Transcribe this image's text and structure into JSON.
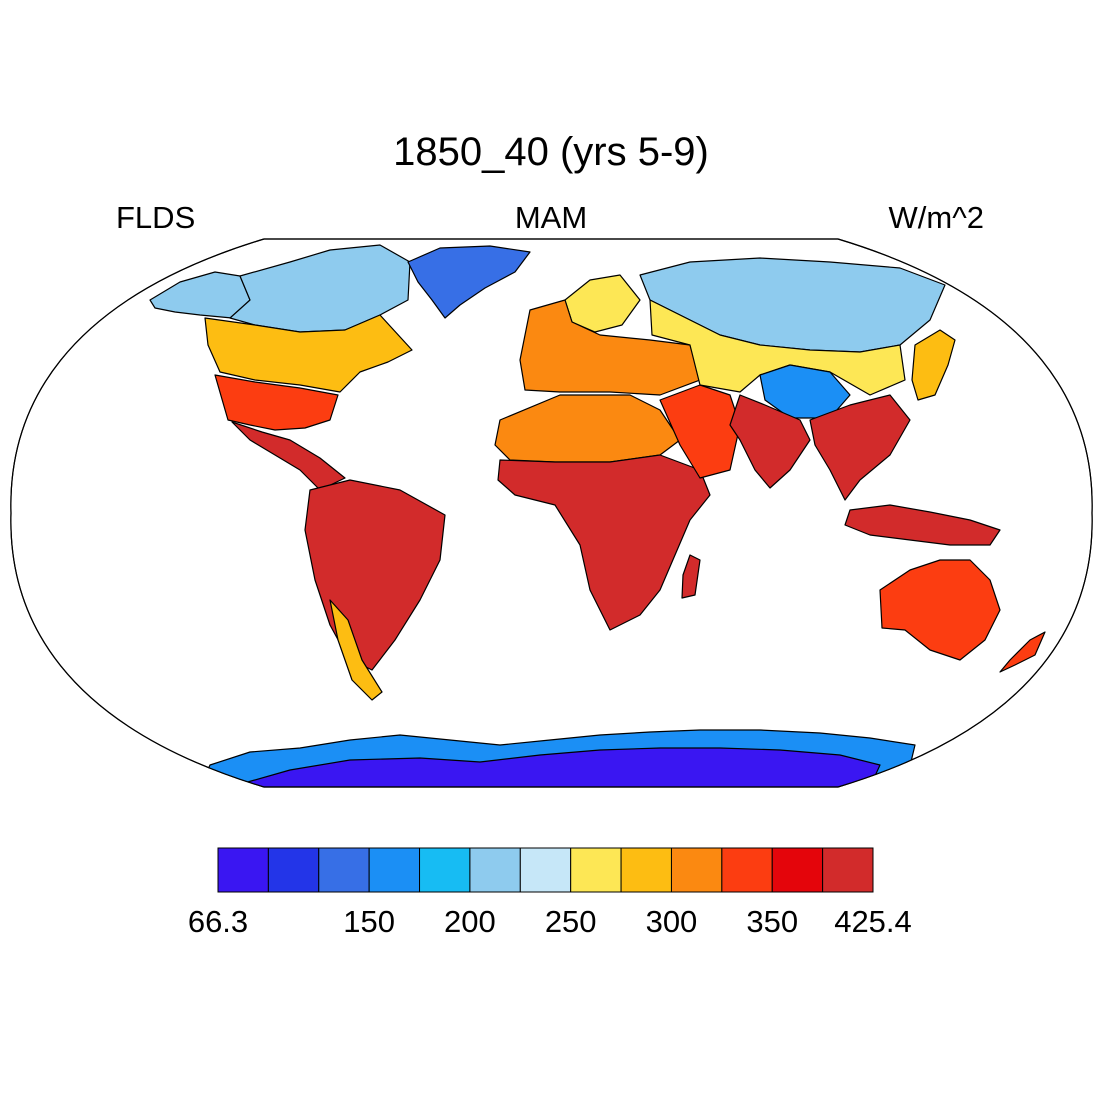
{
  "title": "1850_40 (yrs 5-9)",
  "left_label": "FLDS",
  "center_label": "MAM",
  "right_label": "W/m^2",
  "colorbar": {
    "colors": [
      "#3a16f2",
      "#2335e8",
      "#376fe6",
      "#1b8ff5",
      "#17bcf3",
      "#8ecbee",
      "#c6e7f8",
      "#fde755",
      "#fdbd12",
      "#fb8911",
      "#fc3d11",
      "#e4050b",
      "#d22b2b"
    ],
    "ticks": [
      {
        "label": "66.3",
        "edge": 0
      },
      {
        "label": "150",
        "edge": 3
      },
      {
        "label": "200",
        "edge": 5
      },
      {
        "label": "250",
        "edge": 7
      },
      {
        "label": "300",
        "edge": 9
      },
      {
        "label": "350",
        "edge": 11
      },
      {
        "label": "425.4",
        "edge": 13
      }
    ]
  },
  "map": {
    "projection": "Robinson",
    "regions": [
      {
        "name": "greenland",
        "color": "#376fe6"
      },
      {
        "name": "canada-north",
        "color": "#8ecbee"
      },
      {
        "name": "alaska",
        "color": "#8ecbee"
      },
      {
        "name": "usa",
        "color": "#fdbd12"
      },
      {
        "name": "usa-south",
        "color": "#fc3d11"
      },
      {
        "name": "central-america",
        "color": "#d22b2b"
      },
      {
        "name": "south-america",
        "color": "#d22b2b"
      },
      {
        "name": "andes",
        "color": "#fdbd12"
      },
      {
        "name": "europe",
        "color": "#fb8911"
      },
      {
        "name": "scandinavia",
        "color": "#fde755"
      },
      {
        "name": "north-africa",
        "color": "#fb8911"
      },
      {
        "name": "africa",
        "color": "#d22b2b"
      },
      {
        "name": "madagascar",
        "color": "#d22b2b"
      },
      {
        "name": "arabia",
        "color": "#fc3d11"
      },
      {
        "name": "siberia",
        "color": "#8ecbee"
      },
      {
        "name": "central-asia",
        "color": "#fde755"
      },
      {
        "name": "tibet",
        "color": "#1b8ff5"
      },
      {
        "name": "india",
        "color": "#d22b2b"
      },
      {
        "name": "southeast-asia",
        "color": "#d22b2b"
      },
      {
        "name": "japan",
        "color": "#fdbd12"
      },
      {
        "name": "indonesia",
        "color": "#d22b2b"
      },
      {
        "name": "australia",
        "color": "#fc3d11"
      },
      {
        "name": "new-zealand",
        "color": "#fc3d11"
      },
      {
        "name": "antarctica",
        "color": "#3a16f2"
      },
      {
        "name": "antarctica-coast",
        "color": "#1b8ff5"
      }
    ]
  }
}
